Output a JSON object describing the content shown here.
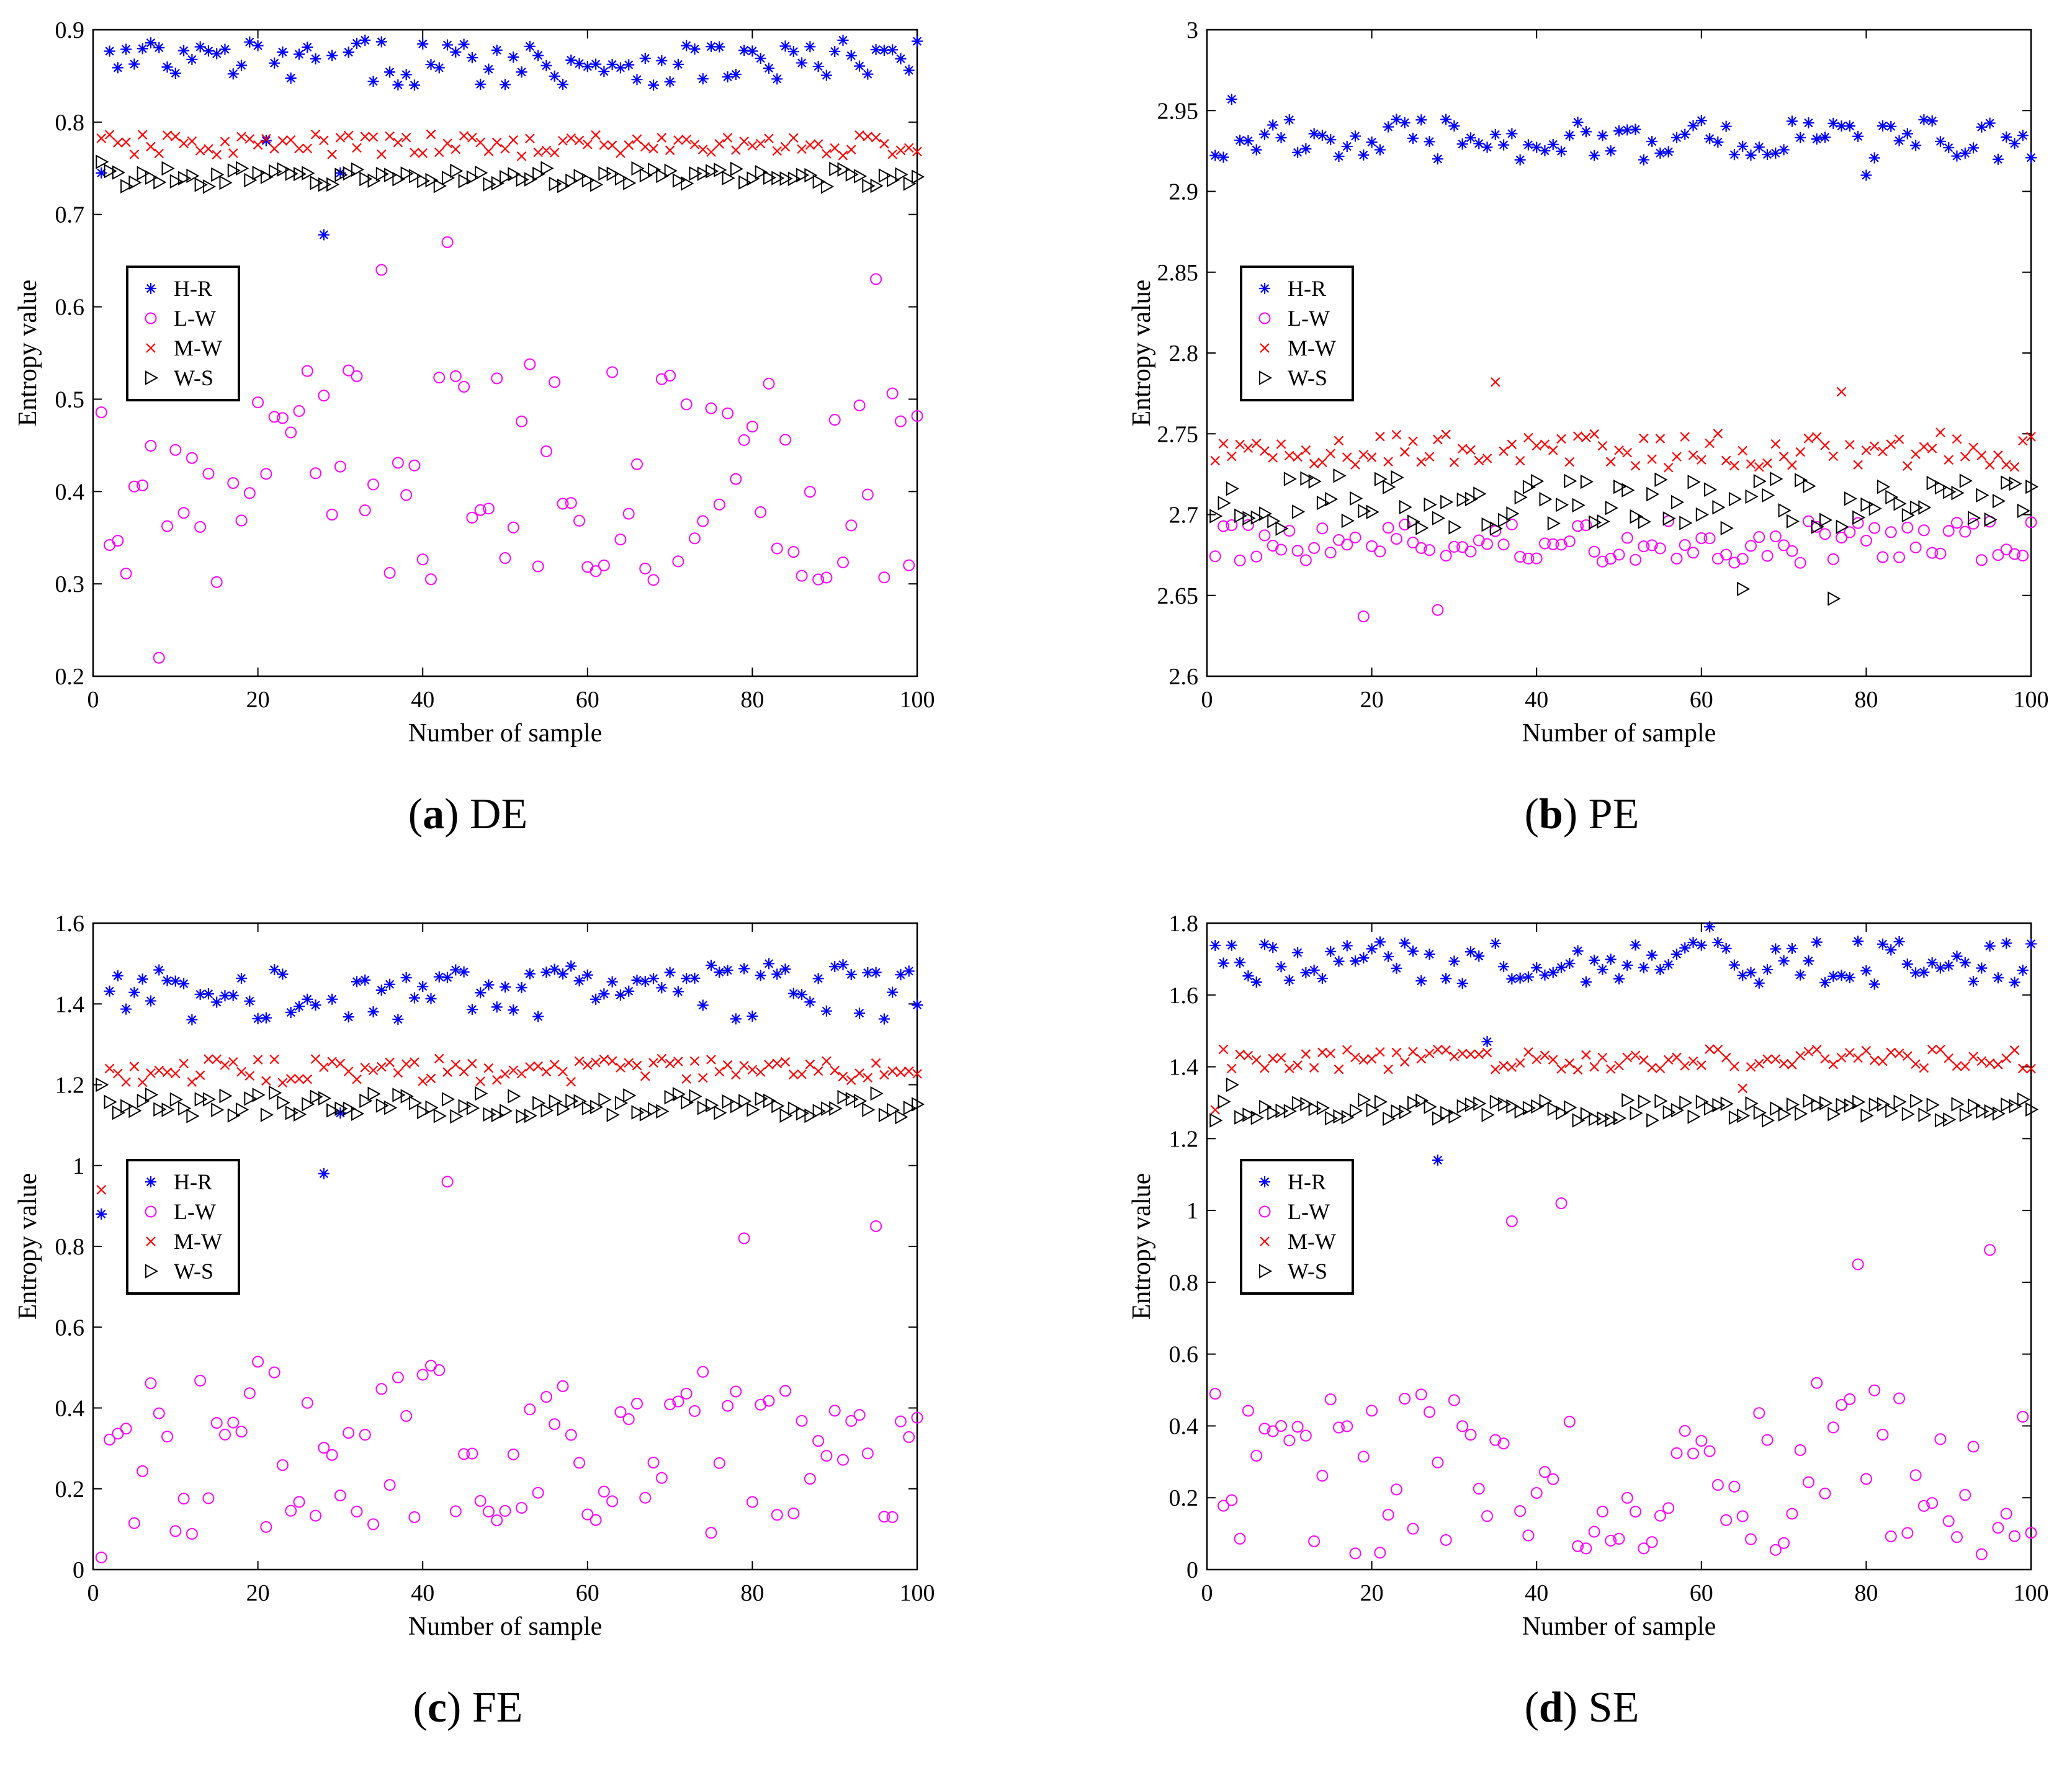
{
  "series_legend": [
    "H-R",
    "L-W",
    "M-W",
    "W-S"
  ],
  "colors": {
    "H-R": "#0000ff",
    "L-W": "#ff00ff",
    "M-W": "#ff0000",
    "W-S": "#000000"
  },
  "chart_data": [
    {
      "type": "scatter",
      "caption_letter": "(a)",
      "caption_text": "DE",
      "xlabel": "Number of sample",
      "ylabel": "Entropy value",
      "xlim": [
        0,
        100
      ],
      "ylim": [
        0.2,
        0.9
      ],
      "xticks": [
        0,
        20,
        40,
        60,
        80,
        100
      ],
      "yticks": [
        0.2,
        0.3,
        0.4,
        0.5,
        0.6,
        0.7,
        0.8,
        0.9
      ],
      "ytick_labels": [
        "0.2",
        "0.3",
        "0.4",
        "0.5",
        "0.6",
        "0.7",
        "0.8",
        "0.9"
      ],
      "legend_position": "middle-left",
      "series": [
        {
          "name": "H-R",
          "base": 0.865,
          "amp": 0.025,
          "outliers": [
            [
              1,
              0.745
            ],
            [
              28,
              0.678
            ],
            [
              21,
              0.78
            ],
            [
              30,
              0.745
            ]
          ]
        },
        {
          "name": "L-W",
          "base": 0.42,
          "amp": 0.12,
          "outliers": [
            [
              8,
              0.22
            ],
            [
              43,
              0.67
            ],
            [
              35,
              0.64
            ],
            [
              95,
              0.63
            ]
          ]
        },
        {
          "name": "M-W",
          "base": 0.775,
          "amp": 0.012,
          "outliers": []
        },
        {
          "name": "W-S",
          "base": 0.74,
          "amp": 0.01,
          "outliers": [
            [
              1,
              0.757
            ]
          ]
        }
      ]
    },
    {
      "type": "scatter",
      "caption_letter": "(b)",
      "caption_text": "PE",
      "xlabel": "Number of sample",
      "ylabel": "Entropy value",
      "xlim": [
        0,
        100
      ],
      "ylim": [
        2.6,
        3.0
      ],
      "xticks": [
        0,
        20,
        40,
        60,
        80,
        100
      ],
      "yticks": [
        2.6,
        2.65,
        2.7,
        2.75,
        2.8,
        2.85,
        2.9,
        2.95,
        3.0
      ],
      "ytick_labels": [
        "2.6",
        "2.65",
        "2.7",
        "2.75",
        "2.8",
        "2.85",
        "2.9",
        "2.95",
        "3"
      ],
      "legend_position": "middle-left",
      "series": [
        {
          "name": "H-R",
          "base": 2.932,
          "amp": 0.013,
          "outliers": [
            [
              3,
              2.957
            ],
            [
              80,
              2.91
            ]
          ]
        },
        {
          "name": "L-W",
          "base": 2.683,
          "amp": 0.013,
          "outliers": [
            [
              19,
              2.637
            ],
            [
              28,
              2.641
            ]
          ]
        },
        {
          "name": "M-W",
          "base": 2.74,
          "amp": 0.011,
          "outliers": [
            [
              35,
              2.782
            ],
            [
              77,
              2.776
            ]
          ]
        },
        {
          "name": "W-S",
          "base": 2.708,
          "amp": 0.017,
          "outliers": [
            [
              65,
              2.654
            ],
            [
              76,
              2.648
            ]
          ]
        }
      ]
    },
    {
      "type": "scatter",
      "caption_letter": "(c)",
      "caption_text": "FE",
      "xlabel": "Number of sample",
      "ylabel": "Entropy value",
      "xlim": [
        0,
        100
      ],
      "ylim": [
        0,
        1.6
      ],
      "xticks": [
        0,
        20,
        40,
        60,
        80,
        100
      ],
      "yticks": [
        0,
        0.2,
        0.4,
        0.6,
        0.8,
        1.0,
        1.2,
        1.4,
        1.6
      ],
      "ytick_labels": [
        "0",
        "0.2",
        "0.4",
        "0.6",
        "0.8",
        "1",
        "1.2",
        "1.4",
        "1.6"
      ],
      "legend_position": "middle-left",
      "series": [
        {
          "name": "H-R",
          "base": 1.43,
          "amp": 0.07,
          "outliers": [
            [
              1,
              0.88
            ],
            [
              28,
              0.98
            ],
            [
              30,
              1.13
            ]
          ]
        },
        {
          "name": "L-W",
          "base": 0.3,
          "amp": 0.22,
          "outliers": [
            [
              43,
              0.96
            ],
            [
              79,
              0.82
            ],
            [
              95,
              0.85
            ],
            [
              1,
              0.03
            ]
          ]
        },
        {
          "name": "M-W",
          "base": 1.235,
          "amp": 0.03,
          "outliers": [
            [
              1,
              0.94
            ]
          ]
        },
        {
          "name": "W-S",
          "base": 1.15,
          "amp": 0.03,
          "outliers": [
            [
              1,
              1.2
            ]
          ]
        }
      ]
    },
    {
      "type": "scatter",
      "caption_letter": "(d)",
      "caption_text": "SE",
      "xlabel": "Number of sample",
      "ylabel": "Entropy value",
      "xlim": [
        0,
        100
      ],
      "ylim": [
        0,
        1.8
      ],
      "xticks": [
        0,
        20,
        40,
        60,
        80,
        100
      ],
      "yticks": [
        0,
        0.2,
        0.4,
        0.6,
        0.8,
        1.0,
        1.2,
        1.4,
        1.6,
        1.8
      ],
      "ytick_labels": [
        "0",
        "0.2",
        "0.4",
        "0.6",
        "0.8",
        "1",
        "1.2",
        "1.4",
        "1.6",
        "1.8"
      ],
      "legend_position": "middle-left",
      "series": [
        {
          "name": "H-R",
          "base": 1.69,
          "amp": 0.06,
          "outliers": [
            [
              28,
              1.14
            ],
            [
              34,
              1.47
            ],
            [
              61,
              1.79
            ]
          ]
        },
        {
          "name": "L-W",
          "base": 0.28,
          "amp": 0.24,
          "outliers": [
            [
              43,
              1.02
            ],
            [
              37,
              0.97
            ],
            [
              95,
              0.89
            ],
            [
              79,
              0.85
            ]
          ]
        },
        {
          "name": "M-W",
          "base": 1.42,
          "amp": 0.03,
          "outliers": [
            [
              1,
              1.28
            ],
            [
              65,
              1.34
            ]
          ]
        },
        {
          "name": "W-S",
          "base": 1.28,
          "amp": 0.03,
          "outliers": [
            [
              3,
              1.35
            ]
          ]
        }
      ]
    }
  ]
}
